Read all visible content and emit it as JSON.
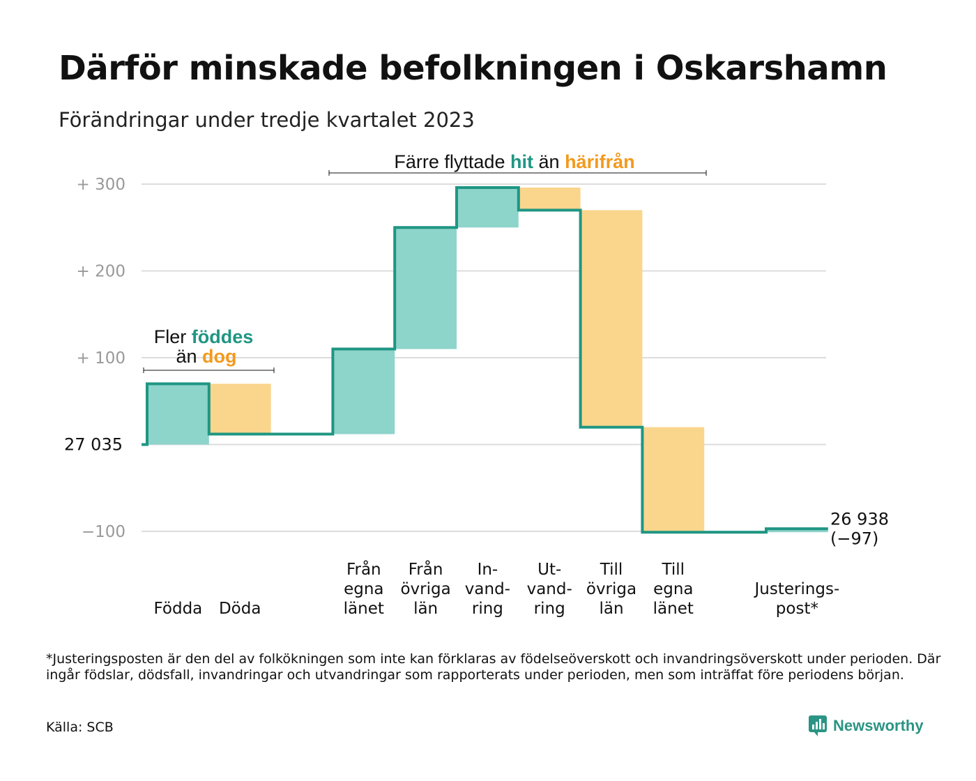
{
  "title": "Därför minskade befolkningen i Oskarshamn",
  "subtitle": "Förändringar under tredje kvartalet 2023",
  "colors": {
    "increase": "#8dd4cb",
    "decrease": "#fad58c",
    "line": "#1f9683",
    "teal_text": "#1f9683",
    "orange_text": "#f29a1e",
    "grid": "#dcdcdc",
    "tick": "#999999"
  },
  "annotations": {
    "births_deaths": {
      "line1_prefix": "Fler",
      "line1_highlight": "föddes",
      "line2_prefix": "än",
      "line2_highlight": "dog"
    },
    "migration": {
      "prefix": "Färre flyttade",
      "highlight1": "hit",
      "middle": "än",
      "highlight2": "härifrån"
    }
  },
  "chart_data": {
    "type": "waterfall",
    "start_label": "27 035",
    "end_label_line1": "26 938",
    "end_label_line2": "(−97)",
    "y_ticks": [
      {
        "value": 300,
        "label": "+  300"
      },
      {
        "value": 200,
        "label": "+  200"
      },
      {
        "value": 100,
        "label": "+  100"
      },
      {
        "value": 0,
        "label": ""
      },
      {
        "value": -100,
        "label": "−100"
      }
    ],
    "ylim": [
      -100,
      300
    ],
    "steps": [
      {
        "key": "fodda",
        "label": [
          "Födda"
        ],
        "start": 0,
        "end": 70,
        "kind": "increase"
      },
      {
        "key": "doda",
        "label": [
          "Döda"
        ],
        "start": 70,
        "end": 12,
        "kind": "decrease"
      },
      {
        "key": "gap",
        "label": [],
        "start": 12,
        "end": 12,
        "kind": "none"
      },
      {
        "key": "fran_egna_lanet",
        "label": [
          "Från",
          "egna",
          "länet"
        ],
        "start": 12,
        "end": 110,
        "kind": "increase"
      },
      {
        "key": "fran_ovriga_lan",
        "label": [
          "Från",
          "övriga",
          "län"
        ],
        "start": 110,
        "end": 250,
        "kind": "increase"
      },
      {
        "key": "invandring",
        "label": [
          "In-",
          "vand-",
          "ring"
        ],
        "start": 250,
        "end": 296,
        "kind": "increase"
      },
      {
        "key": "utvandring",
        "label": [
          "Ut-",
          "vand-",
          "ring"
        ],
        "start": 296,
        "end": 270,
        "kind": "decrease"
      },
      {
        "key": "till_ovriga_lan",
        "label": [
          "Till",
          "övriga",
          "län"
        ],
        "start": 270,
        "end": 20,
        "kind": "decrease"
      },
      {
        "key": "till_egna_lanet",
        "label": [
          "Till",
          "egna",
          "länet"
        ],
        "start": 20,
        "end": -101,
        "kind": "decrease"
      },
      {
        "key": "gap2",
        "label": [],
        "start": -101,
        "end": -101,
        "kind": "none"
      },
      {
        "key": "justeringspost",
        "label": [
          "Justerings-",
          "post*"
        ],
        "start": -101,
        "end": -97,
        "kind": "increase"
      }
    ]
  },
  "footnote": "*Justeringsposten är den del av folkökningen som inte kan förklaras av födelseöverskott och invandringsöverskott under perioden. Där ingår födslar, dödsfall, invandringar och utvandringar som rapporterats under perioden, men som inträffat före periodens början.",
  "source": "Källa: SCB",
  "brand": {
    "name": "Newsworthy",
    "icon": "newsworthy-logo-icon"
  }
}
